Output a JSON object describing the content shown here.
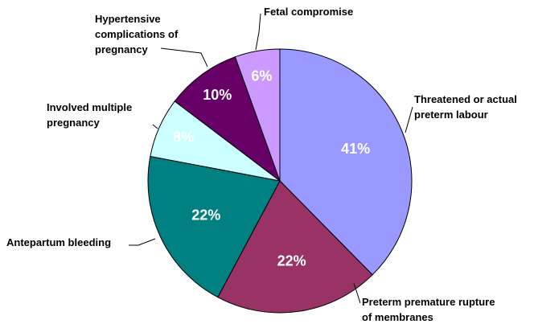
{
  "chart_data": {
    "type": "pie",
    "categories": [
      "Threatened or actual\npreterm labour",
      "Preterm premature rupture\nof membranes",
      "Antepartum bleeding",
      "Involved multiple\npregnancy",
      "Hypertensive\ncomplications of\npregnancy",
      "Fetal compromise"
    ],
    "values": [
      41,
      22,
      22,
      8,
      10,
      6
    ],
    "value_labels": [
      "41%",
      "22%",
      "22%",
      "8%",
      "10%",
      "6%"
    ],
    "colors": [
      "#9999ff",
      "#993366",
      "#008080",
      "#ccffff",
      "#660066",
      "#cc99ff"
    ]
  }
}
